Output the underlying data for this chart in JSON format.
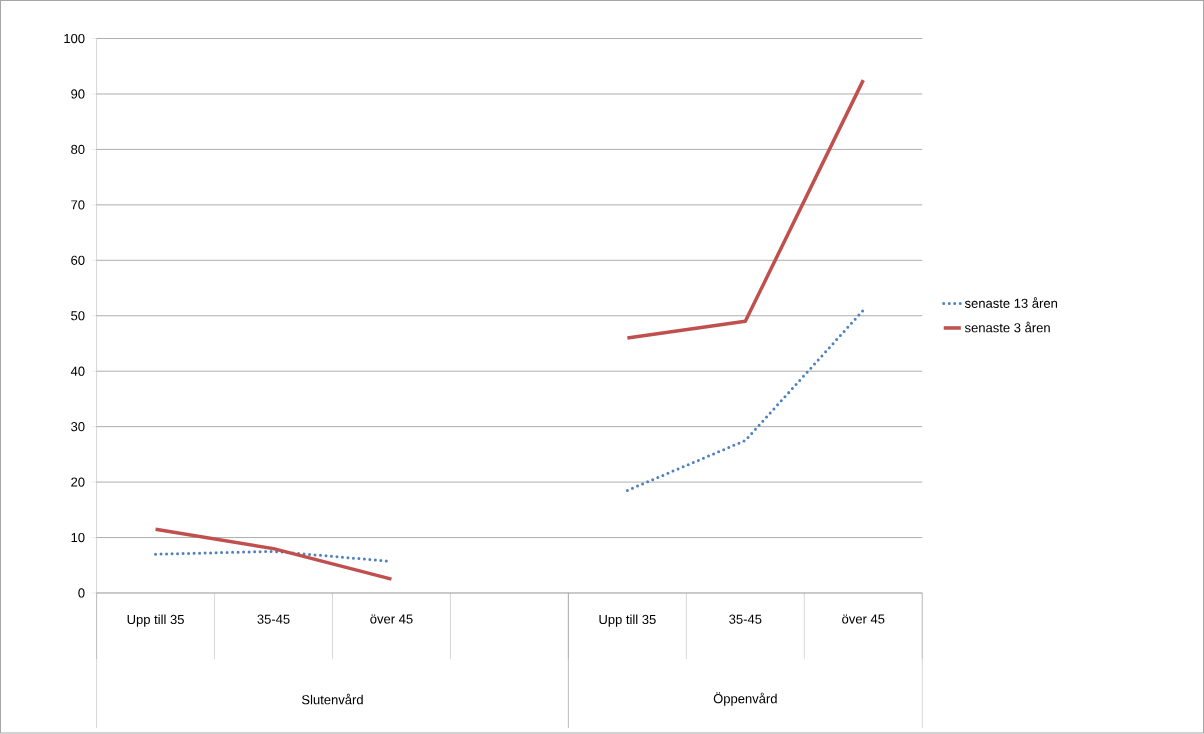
{
  "chart_data": {
    "type": "line",
    "categories": [
      "Upp till 35",
      "35-45",
      "över 45",
      null,
      "Upp till 35",
      "35-45",
      "över 45"
    ],
    "annotations": [
      "Slutenvård",
      "Öppenvård"
    ],
    "series": [
      {
        "name": "senaste 13 åren",
        "color": "#4f81bd",
        "line_style": "dotted",
        "values": [
          7,
          7.5,
          5.7,
          null,
          18.5,
          27.5,
          51
        ]
      },
      {
        "name": "senaste 3 åren",
        "color": "#c0504d",
        "line_style": "solid",
        "values": [
          11.5,
          8,
          2.5,
          null,
          46,
          49,
          92.5
        ]
      }
    ],
    "ylim": [
      0,
      100
    ],
    "yticks": [
      0,
      10,
      20,
      30,
      40,
      50,
      60,
      70,
      80,
      90,
      100
    ],
    "grid": "y",
    "legend": "right",
    "marker": "none"
  }
}
